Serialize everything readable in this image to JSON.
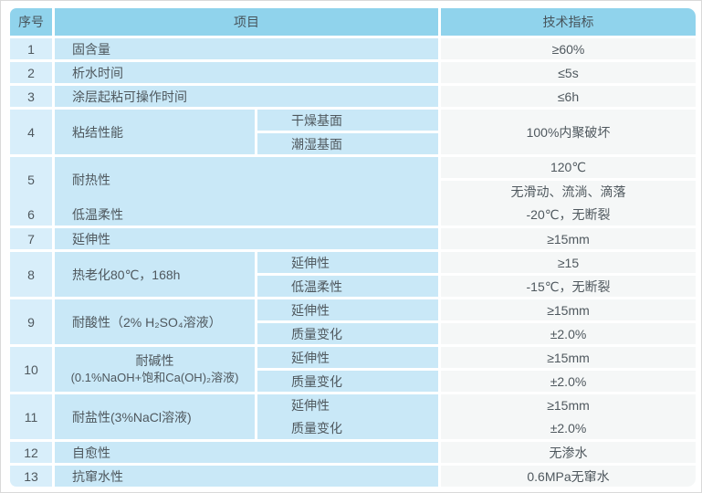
{
  "header": {
    "seq": "序号",
    "item": "项目",
    "indicator": "技术指标"
  },
  "rows": [
    {
      "no": "1",
      "item": "固含量",
      "value": "≥60%"
    },
    {
      "no": "2",
      "item": "析水时间",
      "value": "≤5s"
    },
    {
      "no": "3",
      "item": "涂层起粘可操作时间",
      "value": "≤6h"
    },
    {
      "no": "4",
      "item": "粘结性能",
      "subitems": [
        "干燥基面",
        "潮湿基面"
      ],
      "value": "100%内聚破坏"
    },
    {
      "no": "5",
      "item": "耐热性",
      "values": [
        "120℃",
        "无滑动、流淌、滴落"
      ]
    },
    {
      "no": "6",
      "item": "低温柔性",
      "value": "-20℃，无断裂"
    },
    {
      "no": "7",
      "item": "延伸性",
      "value": "≥15mm"
    },
    {
      "no": "8",
      "item": "热老化80℃，168h",
      "subitems": [
        "延伸性",
        "低温柔性"
      ],
      "values": [
        "≥15",
        "-15℃，无断裂"
      ]
    },
    {
      "no": "9",
      "item": "耐酸性（2% H₂SO₄溶液）",
      "subitems": [
        "延伸性",
        "质量变化"
      ],
      "values": [
        "≥15mm",
        "±2.0%"
      ]
    },
    {
      "no": "10",
      "item": "耐碱性",
      "item_line2": "(0.1%NaOH+饱和Ca(OH)₂溶液)",
      "subitems": [
        "延伸性",
        "质量变化"
      ],
      "values": [
        "≥15mm",
        "±2.0%"
      ]
    },
    {
      "no": "11",
      "item": "耐盐性(3%NaCl溶液)",
      "subitems": [
        "延伸性",
        "质量变化"
      ],
      "values": [
        "≥15mm",
        "±2.0%"
      ]
    },
    {
      "no": "12",
      "item": "自愈性",
      "value": "无渗水"
    },
    {
      "no": "13",
      "item": "抗窜水性",
      "value": "0.6MPa无窜水"
    }
  ],
  "colors": {
    "header_bg": "#90d3ec",
    "seq_col_bg": "#d8eefa",
    "item_col_bg": "#c9e8f7",
    "indicator_col_bg": "#f5f7f7",
    "text": "#4f585e",
    "gap": "#ffffff"
  }
}
